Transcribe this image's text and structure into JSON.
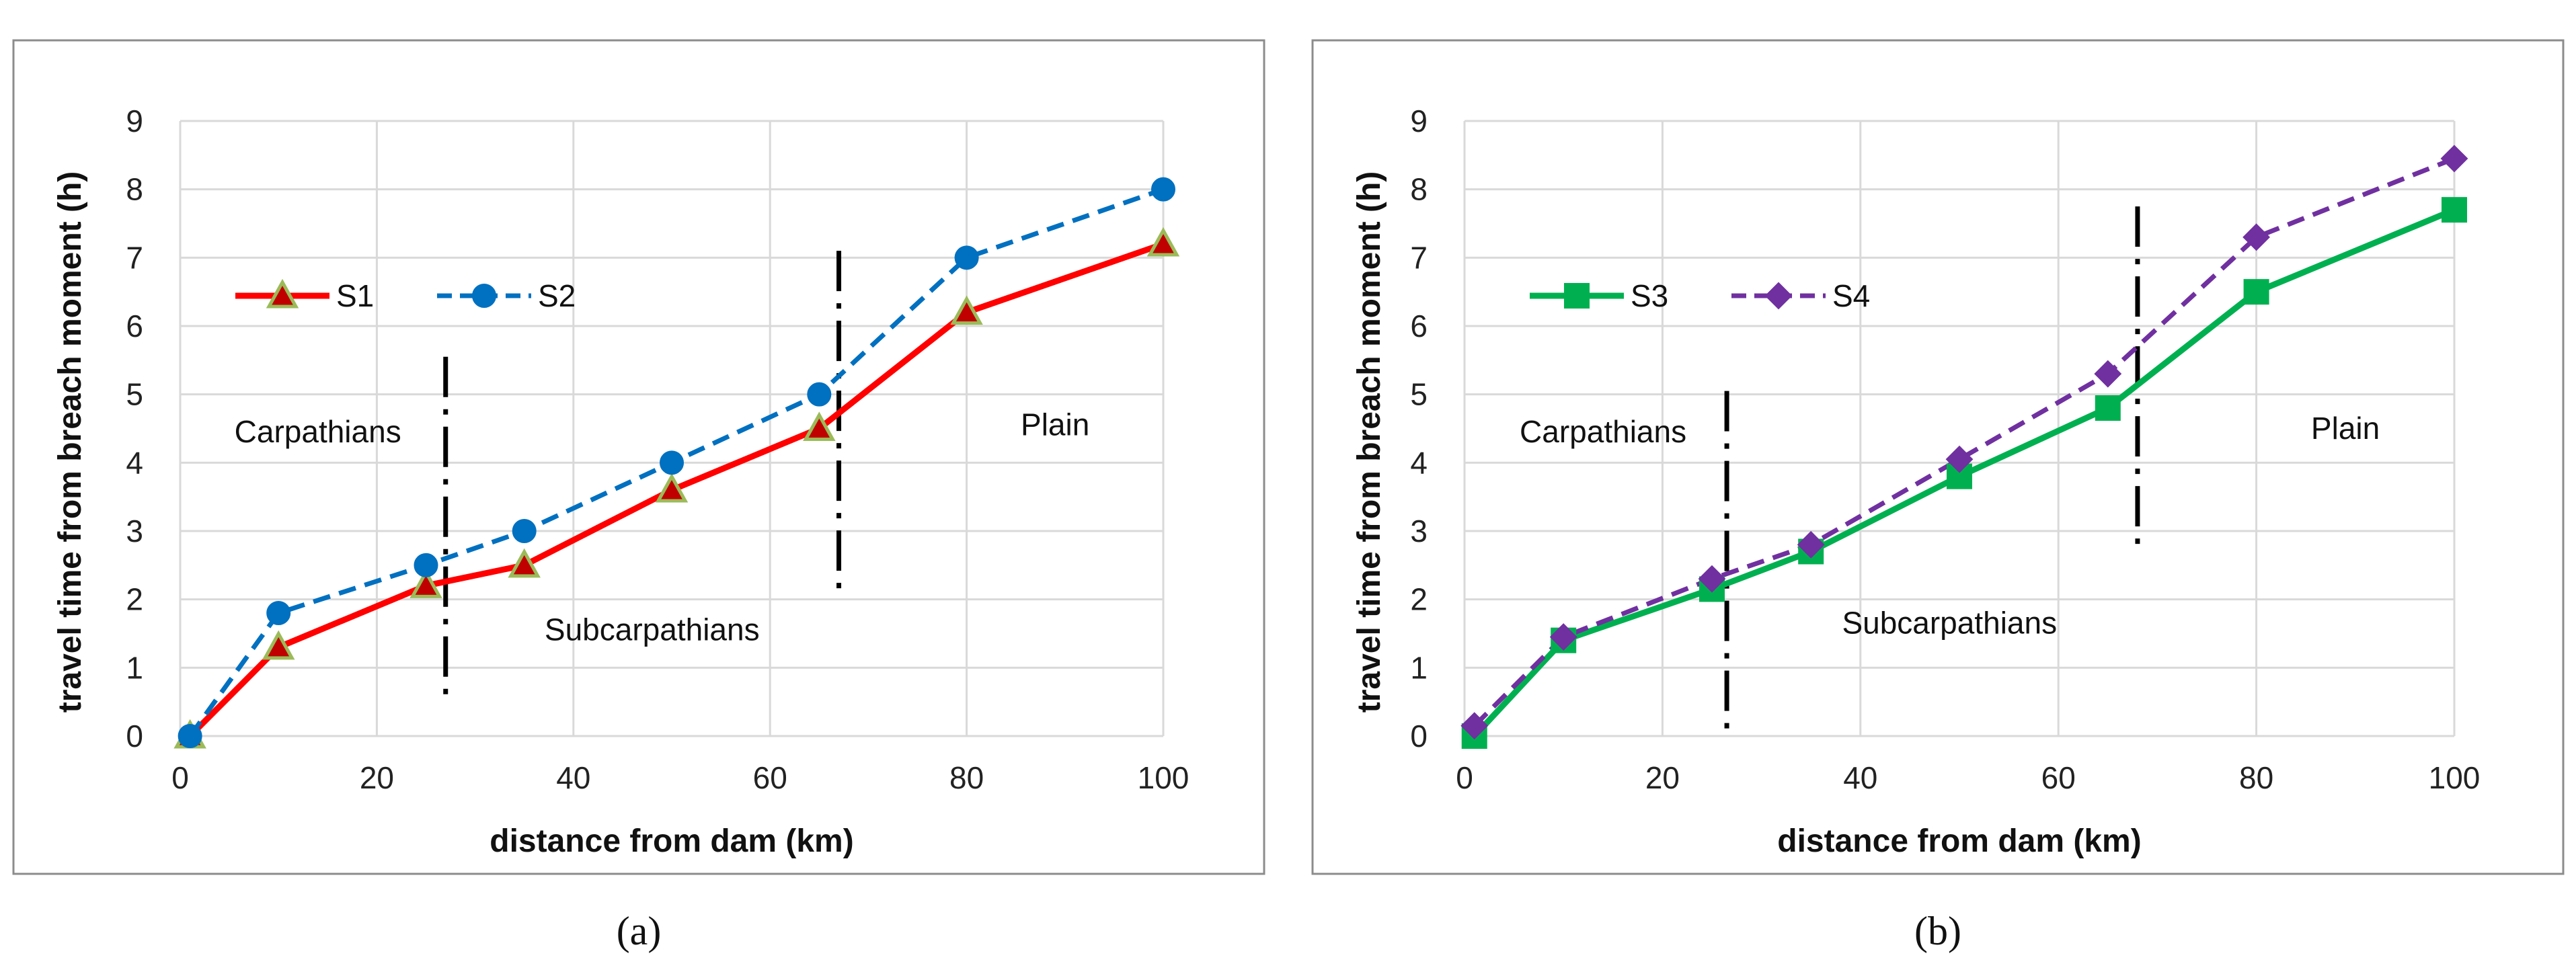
{
  "chart_data": [
    {
      "type": "line",
      "caption": "(a)",
      "xlabel": "distance from dam (km)",
      "ylabel": "travel time from breach moment (h)",
      "xlim": [
        0,
        100
      ],
      "ylim": [
        0,
        9
      ],
      "xticks": [
        0,
        20,
        40,
        60,
        80,
        100
      ],
      "yticks": [
        0,
        1,
        2,
        3,
        4,
        5,
        6,
        7,
        8,
        9
      ],
      "grid": true,
      "legend": "upper-left",
      "series": [
        {
          "name": "S1",
          "color": "#ff0000",
          "style": "solid",
          "marker": "triangle",
          "marker_fill": "#c00000",
          "marker_stroke": "#9bbb59",
          "x": [
            1,
            10,
            25,
            35,
            50,
            65,
            80,
            100
          ],
          "y": [
            0.0,
            1.3,
            2.2,
            2.5,
            3.6,
            4.5,
            6.2,
            7.2
          ]
        },
        {
          "name": "S2",
          "color": "#0070c0",
          "style": "dashed",
          "marker": "circle",
          "marker_fill": "#0070c0",
          "marker_stroke": "#0070c0",
          "x": [
            1,
            10,
            25,
            35,
            50,
            65,
            80,
            100
          ],
          "y": [
            0.0,
            1.8,
            2.5,
            3.0,
            4.0,
            5.0,
            7.0,
            8.0
          ]
        }
      ],
      "dividers": [
        {
          "x": 27,
          "y_from": 0.55,
          "y_to": 5.55
        },
        {
          "x": 67,
          "y_from": 2.1,
          "y_to": 7.1
        }
      ],
      "regions": [
        {
          "label": "Carpathians",
          "x": 14,
          "y": 4.3
        },
        {
          "label": "Subcarpathians",
          "x": 48,
          "y": 1.4
        },
        {
          "label": "Plain",
          "x": 89,
          "y": 4.4
        }
      ]
    },
    {
      "type": "line",
      "caption": "(b)",
      "xlabel": "distance from dam (km)",
      "ylabel": "travel  time from breach moment (h)",
      "xlim": [
        0,
        100
      ],
      "ylim": [
        0,
        9
      ],
      "xticks": [
        0,
        20,
        40,
        60,
        80,
        100
      ],
      "yticks": [
        0,
        1,
        2,
        3,
        4,
        5,
        6,
        7,
        8,
        9
      ],
      "grid": true,
      "legend": "upper-left",
      "series": [
        {
          "name": "S3",
          "color": "#00b050",
          "style": "solid",
          "marker": "square",
          "marker_fill": "#00b050",
          "marker_stroke": "#00b050",
          "x": [
            1,
            10,
            25,
            35,
            50,
            65,
            80,
            100
          ],
          "y": [
            0.0,
            1.4,
            2.15,
            2.7,
            3.8,
            4.8,
            6.5,
            7.7
          ]
        },
        {
          "name": "S4",
          "color": "#7030a0",
          "style": "dashed",
          "marker": "diamond",
          "marker_fill": "#7030a0",
          "marker_stroke": "#7030a0",
          "x": [
            1,
            10,
            25,
            35,
            50,
            65,
            80,
            100
          ],
          "y": [
            0.15,
            1.45,
            2.3,
            2.8,
            4.05,
            5.3,
            7.3,
            8.45
          ]
        }
      ],
      "dividers": [
        {
          "x": 26.5,
          "y_from": 0.05,
          "y_to": 5.05
        },
        {
          "x": 68,
          "y_from": 2.7,
          "y_to": 7.75
        }
      ],
      "regions": [
        {
          "label": "Carpathians",
          "x": 14,
          "y": 4.3
        },
        {
          "label": "Subcarpathians",
          "x": 49,
          "y": 1.5
        },
        {
          "label": "Plain",
          "x": 89,
          "y": 4.35
        }
      ]
    }
  ]
}
